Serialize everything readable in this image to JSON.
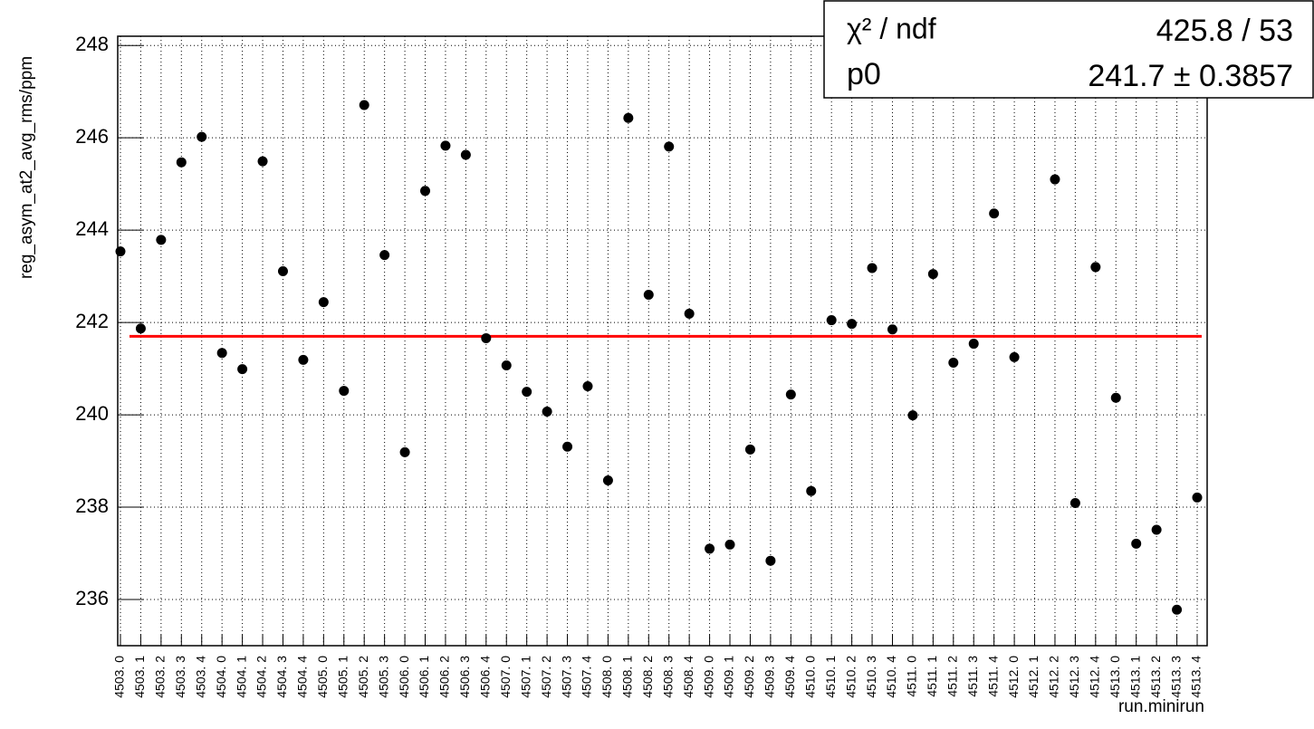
{
  "chart_data": {
    "type": "scatter",
    "y_label": "reg_asym_at2_avg_rms/ppm",
    "x_label": "run.minirun",
    "categories": [
      "4503. 0",
      "4503. 1",
      "4503. 2",
      "4503. 3",
      "4503. 4",
      "4504. 0",
      "4504. 1",
      "4504. 2",
      "4504. 3",
      "4504. 4",
      "4505. 0",
      "4505. 1",
      "4505. 2",
      "4505. 3",
      "4506. 0",
      "4506. 1",
      "4506. 2",
      "4506. 3",
      "4506. 4",
      "4507. 0",
      "4507. 1",
      "4507. 2",
      "4507. 3",
      "4507. 4",
      "4508. 0",
      "4508. 1",
      "4508. 2",
      "4508. 3",
      "4508. 4",
      "4509. 0",
      "4509. 1",
      "4509. 2",
      "4509. 3",
      "4509. 4",
      "4510. 0",
      "4510. 1",
      "4510. 2",
      "4510. 3",
      "4510. 4",
      "4511. 0",
      "4511. 1",
      "4511. 2",
      "4511. 3",
      "4511. 4",
      "4512. 0",
      "4512. 1",
      "4512. 2",
      "4512. 3",
      "4512. 4",
      "4513. 0",
      "4513. 1",
      "4513. 2",
      "4513. 3",
      "4513. 4"
    ],
    "values": [
      243.54,
      241.87,
      243.79,
      245.47,
      246.02,
      241.34,
      240.99,
      245.49,
      243.11,
      241.19,
      242.44,
      240.52,
      246.71,
      243.46,
      239.19,
      244.85,
      245.83,
      245.63,
      241.66,
      241.07,
      240.5,
      240.07,
      239.31,
      240.62,
      238.58,
      246.43,
      242.6,
      245.81,
      242.19,
      237.1,
      237.19,
      239.25,
      236.84,
      240.44,
      238.35,
      242.05,
      241.97,
      243.18,
      241.85,
      239.99,
      243.05,
      241.13,
      241.54,
      244.36,
      241.25,
      null,
      245.1,
      238.09,
      243.2,
      240.37,
      237.21,
      237.51,
      235.78,
      238.21
    ],
    "color": "#000000",
    "fit_color": "#ff0000",
    "ylim": [
      235,
      248.2
    ],
    "yticks": [
      236,
      238,
      240,
      242,
      244,
      246,
      248
    ],
    "grid": true,
    "stats": [
      {
        "label": "χ² / ndf",
        "value": "425.8 / 53"
      },
      {
        "label": "p0",
        "value": {
          "value": 241.7,
          "error": 0.3857,
          "label": "241.7 ± 0.3857"
        }
      }
    ]
  }
}
